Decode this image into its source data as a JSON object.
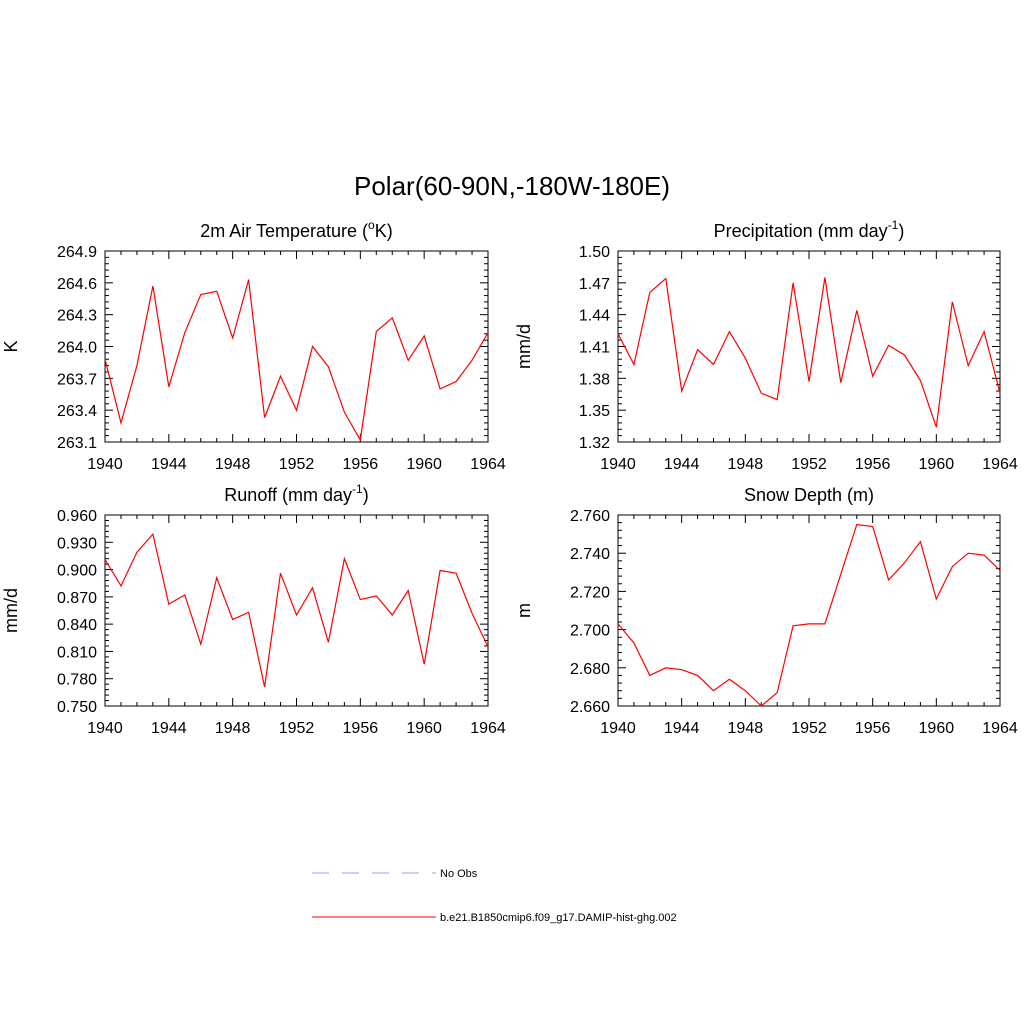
{
  "page_title": "Polar(60-90N,-180W-180E)",
  "colors": {
    "series": "#ff0000",
    "obs": "#9999ff",
    "axis": "#000000"
  },
  "legend": {
    "items": [
      {
        "label": "No Obs",
        "style": "dashed",
        "color": "#9999ff"
      },
      {
        "label": "b.e21.B1850cmip6.f09_g17.DAMIP-hist-ghg.002",
        "style": "solid",
        "color": "#ff0000"
      }
    ]
  },
  "chart_data": [
    {
      "type": "line",
      "title": "2m Air Temperature (",
      "title_sup": "o",
      "title_after": "K)",
      "ylabel": "K",
      "xlim": [
        1940,
        1964
      ],
      "ylim": [
        263.1,
        264.9
      ],
      "x_ticks": [
        "1940",
        "1944",
        "1948",
        "1952",
        "1956",
        "1960",
        "1964"
      ],
      "y_ticks": [
        "263.1",
        "263.4",
        "263.7",
        "264.0",
        "264.3",
        "264.6",
        "264.9"
      ],
      "x": [
        1940,
        1941,
        1942,
        1943,
        1944,
        1945,
        1946,
        1947,
        1948,
        1949,
        1950,
        1951,
        1952,
        1953,
        1954,
        1955,
        1956,
        1957,
        1958,
        1959,
        1960,
        1961,
        1962,
        1963,
        1964
      ],
      "series": [
        {
          "values": [
            263.88,
            263.28,
            263.82,
            264.57,
            263.62,
            264.13,
            264.49,
            264.52,
            264.08,
            264.63,
            263.33,
            263.72,
            263.4,
            264.0,
            263.81,
            263.38,
            263.12,
            264.14,
            264.27,
            263.87,
            264.1,
            263.6,
            263.67,
            263.87,
            264.13
          ]
        }
      ]
    },
    {
      "type": "line",
      "title": "Precipitation (mm day",
      "title_sup": "-1",
      "title_after": ")",
      "ylabel": "mm/d",
      "xlim": [
        1940,
        1964
      ],
      "ylim": [
        1.32,
        1.5
      ],
      "x_ticks": [
        "1940",
        "1944",
        "1948",
        "1952",
        "1956",
        "1960",
        "1964"
      ],
      "y_ticks": [
        "1.32",
        "1.35",
        "1.38",
        "1.41",
        "1.44",
        "1.47",
        "1.50"
      ],
      "x": [
        1940,
        1941,
        1942,
        1943,
        1944,
        1945,
        1946,
        1947,
        1948,
        1949,
        1950,
        1951,
        1952,
        1953,
        1954,
        1955,
        1956,
        1957,
        1958,
        1959,
        1960,
        1961,
        1962,
        1963,
        1964
      ],
      "series": [
        {
          "values": [
            1.422,
            1.393,
            1.461,
            1.474,
            1.368,
            1.407,
            1.393,
            1.424,
            1.399,
            1.366,
            1.36,
            1.47,
            1.377,
            1.475,
            1.376,
            1.444,
            1.382,
            1.411,
            1.402,
            1.378,
            1.334,
            1.452,
            1.392,
            1.424,
            1.366
          ]
        }
      ]
    },
    {
      "type": "line",
      "title": "Runoff (mm day",
      "title_sup": "-1",
      "title_after": ")",
      "ylabel": "mm/d",
      "xlim": [
        1940,
        1964
      ],
      "ylim": [
        0.75,
        0.96
      ],
      "x_ticks": [
        "1940",
        "1944",
        "1948",
        "1952",
        "1956",
        "1960",
        "1964"
      ],
      "y_ticks": [
        "0.750",
        "0.780",
        "0.810",
        "0.840",
        "0.870",
        "0.900",
        "0.930",
        "0.960"
      ],
      "x": [
        1940,
        1941,
        1942,
        1943,
        1944,
        1945,
        1946,
        1947,
        1948,
        1949,
        1950,
        1951,
        1952,
        1953,
        1954,
        1955,
        1956,
        1957,
        1958,
        1959,
        1960,
        1961,
        1962,
        1963,
        1964
      ],
      "series": [
        {
          "values": [
            0.911,
            0.882,
            0.919,
            0.939,
            0.862,
            0.872,
            0.818,
            0.891,
            0.845,
            0.853,
            0.771,
            0.896,
            0.85,
            0.88,
            0.82,
            0.912,
            0.867,
            0.871,
            0.85,
            0.877,
            0.796,
            0.899,
            0.896,
            0.852,
            0.815
          ]
        }
      ]
    },
    {
      "type": "line",
      "title": "Snow Depth (m)",
      "title_sup": "",
      "title_after": "",
      "ylabel": "m",
      "xlim": [
        1940,
        1964
      ],
      "ylim": [
        2.66,
        2.76
      ],
      "x_ticks": [
        "1940",
        "1944",
        "1948",
        "1952",
        "1956",
        "1960",
        "1964"
      ],
      "y_ticks": [
        "2.660",
        "2.680",
        "2.700",
        "2.720",
        "2.740",
        "2.760"
      ],
      "x": [
        1940,
        1941,
        1942,
        1943,
        1944,
        1945,
        1946,
        1947,
        1948,
        1949,
        1950,
        1951,
        1952,
        1953,
        1954,
        1955,
        1956,
        1957,
        1958,
        1959,
        1960,
        1961,
        1962,
        1963,
        1964
      ],
      "series": [
        {
          "values": [
            2.703,
            2.693,
            2.676,
            2.68,
            2.679,
            2.676,
            2.668,
            2.674,
            2.668,
            2.66,
            2.667,
            2.702,
            2.703,
            2.703,
            2.729,
            2.755,
            2.754,
            2.726,
            2.735,
            2.746,
            2.716,
            2.733,
            2.74,
            2.739,
            2.731
          ]
        }
      ]
    }
  ]
}
